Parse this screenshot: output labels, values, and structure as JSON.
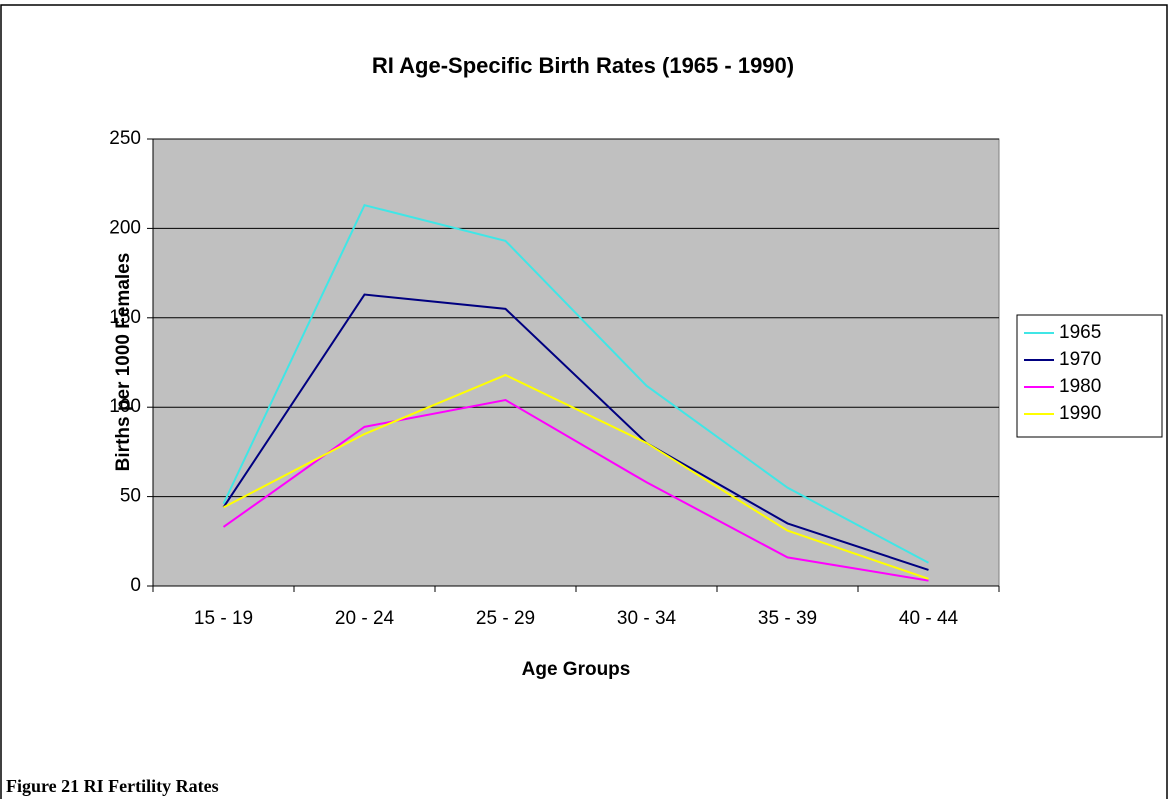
{
  "chart_data": {
    "type": "line",
    "title": "RI Age-Specific Birth Rates (1965 - 1990)",
    "xlabel": "Age Groups",
    "ylabel": "Births per 1000 Females",
    "categories": [
      "15 - 19",
      "20 - 24",
      "25 - 29",
      "30 - 34",
      "35 - 39",
      "40 - 44"
    ],
    "series": [
      {
        "name": "1965",
        "color": "#40e6e6",
        "values": [
          46,
          213,
          193,
          112,
          55,
          13
        ]
      },
      {
        "name": "1970",
        "color": "#000080",
        "values": [
          44,
          163,
          155,
          80,
          35,
          9
        ]
      },
      {
        "name": "1980",
        "color": "#ff00ff",
        "values": [
          33,
          89,
          104,
          58,
          16,
          3
        ]
      },
      {
        "name": "1990",
        "color": "#ffff00",
        "values": [
          44,
          85,
          118,
          80,
          31,
          4
        ]
      }
    ],
    "ylim": [
      0,
      250
    ],
    "yticks": [
      0,
      50,
      100,
      150,
      200,
      250
    ],
    "grid": true,
    "legend": "right",
    "caption": "Figure 21 RI Fertility Rates"
  }
}
